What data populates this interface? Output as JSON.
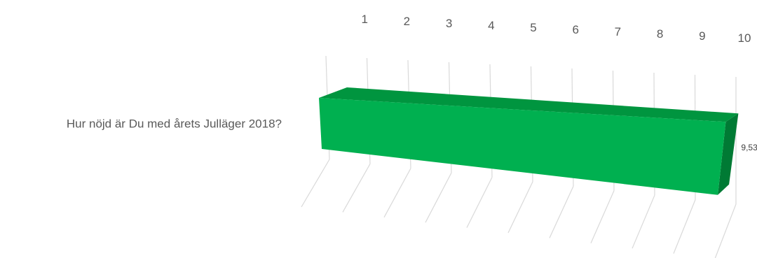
{
  "chart_data": {
    "type": "bar",
    "orientation": "horizontal",
    "style": "3d",
    "categories": [
      "Hur nöjd är Du med årets Julläger 2018?"
    ],
    "values": [
      9.53
    ],
    "value_labels": [
      "9,53"
    ],
    "ticks": [
      "1",
      "2",
      "3",
      "4",
      "5",
      "6",
      "7",
      "8",
      "9",
      "10"
    ],
    "xlim": [
      0,
      10
    ],
    "grid": true,
    "legend": "none",
    "title": "",
    "xlabel": "",
    "ylabel": "",
    "colors": {
      "bar_front": "#00b050",
      "bar_top": "#00953f",
      "bar_side": "#007a34",
      "grid": "#d9d9d9",
      "text": "#595959"
    }
  }
}
